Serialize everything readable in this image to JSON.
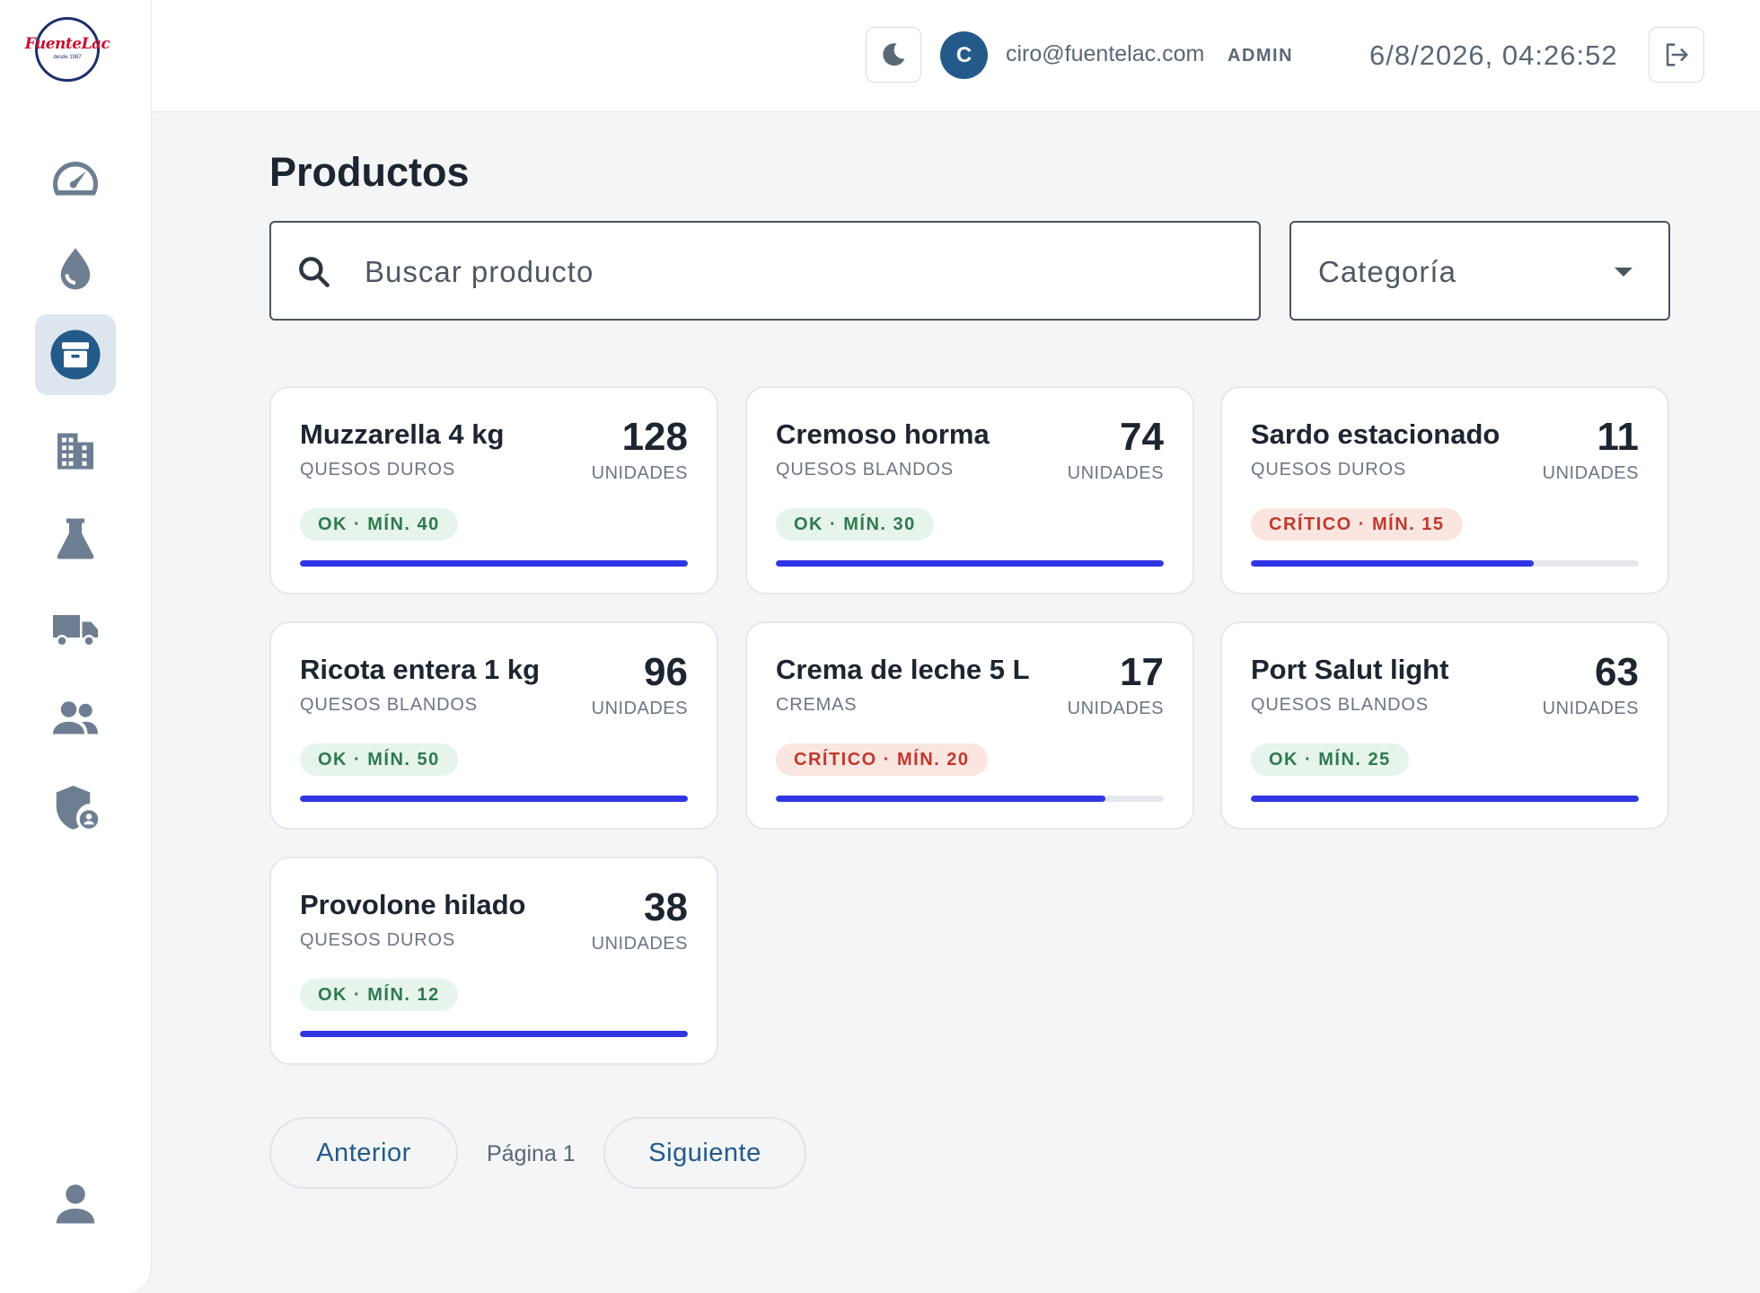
{
  "brand": {
    "logo_text": "FuenteLac",
    "logo_sub": "desde 1987"
  },
  "sidebar": {
    "items": [
      {
        "icon": "speedometer-icon",
        "active": false
      },
      {
        "icon": "drop-icon",
        "active": false
      },
      {
        "icon": "archive-box-icon",
        "active": true
      },
      {
        "icon": "building-icon",
        "active": false
      },
      {
        "icon": "flask-icon",
        "active": false
      },
      {
        "icon": "truck-icon",
        "active": false
      },
      {
        "icon": "users-icon",
        "active": false
      },
      {
        "icon": "shield-user-icon",
        "active": false
      }
    ],
    "profile_icon": "person-icon"
  },
  "header": {
    "avatar_initial": "C",
    "email": "ciro@fuentelac.com",
    "role": "ADMIN",
    "datetime": "6/8/2026, 04:26:52"
  },
  "page": {
    "title": "Productos"
  },
  "search": {
    "placeholder": "Buscar producto",
    "value": ""
  },
  "filter": {
    "label": "Categoría"
  },
  "colors": {
    "accent": "#3136e4",
    "ok": "#2e7a4d",
    "critical": "#c0392b",
    "avatar": "#245a8a"
  },
  "products": [
    {
      "name": "Muzzarella 4 kg",
      "category": "QUESOS DUROS",
      "qty": "128",
      "unit": "UNIDADES",
      "badge": "OK · MÍN. 40",
      "status": "ok",
      "level": 1.0
    },
    {
      "name": "Cremoso horma",
      "category": "QUESOS BLANDOS",
      "qty": "74",
      "unit": "UNIDADES",
      "badge": "OK · MÍN. 30",
      "status": "ok",
      "level": 1.0
    },
    {
      "name": "Sardo estacionado",
      "category": "QUESOS DUROS",
      "qty": "11",
      "unit": "UNIDADES",
      "badge": "CRÍTICO · MÍN. 15",
      "status": "crit",
      "level": 0.73
    },
    {
      "name": "Ricota entera 1 kg",
      "category": "QUESOS BLANDOS",
      "qty": "96",
      "unit": "UNIDADES",
      "badge": "OK · MÍN. 50",
      "status": "ok",
      "level": 1.0
    },
    {
      "name": "Crema de leche 5 L",
      "category": "CREMAS",
      "qty": "17",
      "unit": "UNIDADES",
      "badge": "CRÍTICO · MÍN. 20",
      "status": "crit",
      "level": 0.85
    },
    {
      "name": "Port Salut light",
      "category": "QUESOS BLANDOS",
      "qty": "63",
      "unit": "UNIDADES",
      "badge": "OK · MÍN. 25",
      "status": "ok",
      "level": 1.0
    },
    {
      "name": "Provolone hilado",
      "category": "QUESOS DUROS",
      "qty": "38",
      "unit": "UNIDADES",
      "badge": "OK · MÍN. 12",
      "status": "ok",
      "level": 1.0
    }
  ],
  "pagination": {
    "prev_label": "Anterior",
    "page_label": "Página 1",
    "next_label": "Siguiente"
  }
}
